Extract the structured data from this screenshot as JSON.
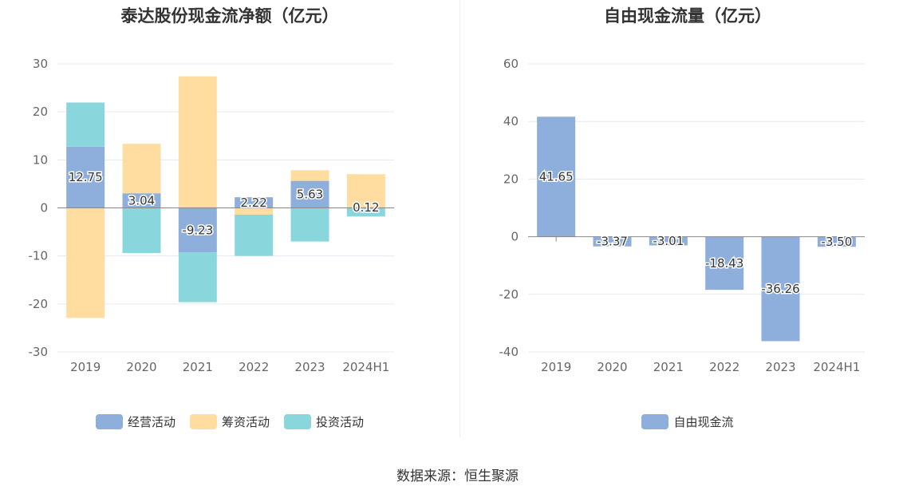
{
  "source_text": "数据来源：恒生聚源",
  "chart_data": [
    {
      "type": "bar",
      "stacked": true,
      "title": "泰达股份现金流净额（亿元）",
      "categories": [
        "2019",
        "2020",
        "2021",
        "2022",
        "2023",
        "2024H1"
      ],
      "ylim": [
        -30,
        30
      ],
      "yticks": [
        -30,
        -20,
        -10,
        0,
        10,
        20,
        30
      ],
      "grid": true,
      "legend_position": "bottom",
      "series": [
        {
          "name": "经营活动",
          "color": "#8eaedc",
          "values": [
            12.75,
            3.04,
            -9.23,
            2.22,
            5.63,
            0.12
          ]
        },
        {
          "name": "筹资活动",
          "color": "#ffdca0",
          "values": [
            -22.9,
            10.3,
            27.4,
            -1.4,
            2.2,
            6.9
          ]
        },
        {
          "name": "投资活动",
          "color": "#89d7dc",
          "values": [
            9.2,
            -9.4,
            -10.4,
            -8.6,
            -7.0,
            -1.8
          ]
        }
      ],
      "data_labels": {
        "series": "经营活动",
        "texts": [
          "12.75",
          "3.04",
          "-9.23",
          "2.22",
          "5.63",
          "0.12"
        ]
      }
    },
    {
      "type": "bar",
      "title": "自由现金流量（亿元）",
      "categories": [
        "2019",
        "2020",
        "2021",
        "2022",
        "2023",
        "2024H1"
      ],
      "ylim": [
        -40,
        60
      ],
      "yticks": [
        -40,
        -20,
        0,
        20,
        40,
        60
      ],
      "grid": true,
      "legend_position": "bottom",
      "series": [
        {
          "name": "自由现金流",
          "color": "#8eaedc",
          "values": [
            41.65,
            -3.37,
            -3.01,
            -18.43,
            -36.26,
            -3.5
          ]
        }
      ],
      "data_labels": {
        "series": "自由现金流",
        "texts": [
          "41.65",
          "-3.37",
          "-3.01",
          "-18.43",
          "-36.26",
          "-3.50"
        ]
      }
    }
  ]
}
